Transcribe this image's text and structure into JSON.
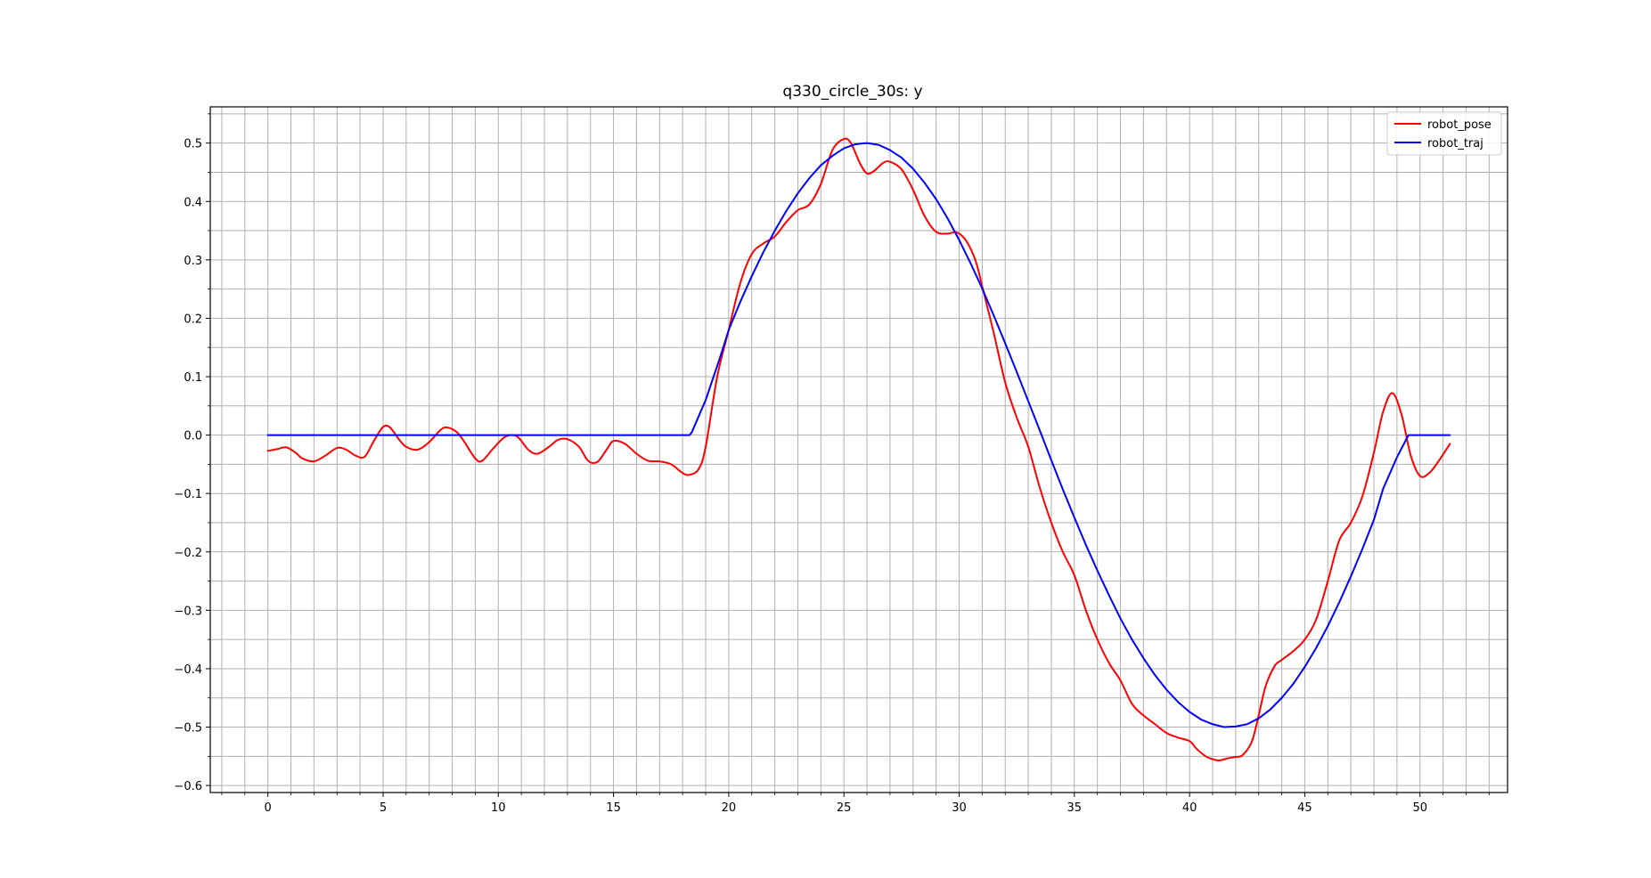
{
  "chart_data": {
    "type": "line",
    "title": "q330_circle_30s: y",
    "xlabel": "",
    "ylabel": "",
    "xlim": [
      -2.5,
      53.8
    ],
    "ylim": [
      -0.612,
      0.562
    ],
    "xticks": [
      0,
      5,
      10,
      15,
      20,
      25,
      30,
      35,
      40,
      45,
      50
    ],
    "xtick_labels": [
      "0",
      "5",
      "10",
      "15",
      "20",
      "25",
      "30",
      "35",
      "40",
      "45",
      "50"
    ],
    "yticks": [
      0.5,
      0.4,
      0.3,
      0.2,
      0.1,
      0.0,
      -0.1,
      -0.2,
      -0.3,
      -0.4,
      -0.5,
      -0.6
    ],
    "ytick_labels": [
      "0.5",
      "0.4",
      "0.3",
      "0.2",
      "0.1",
      "0.0",
      "−0.1",
      "−0.2",
      "−0.3",
      "−0.4",
      "−0.5",
      "−0.6"
    ],
    "grid": true,
    "minor_grid": true,
    "legend_position": "top-right",
    "series": [
      {
        "name": "robot_pose",
        "color": "#ff0000",
        "x": [
          0,
          0.4,
          0.8,
          1.2,
          1.5,
          2.0,
          2.5,
          3.0,
          3.4,
          3.8,
          4.2,
          4.6,
          5.0,
          5.3,
          5.7,
          6.0,
          6.5,
          7.0,
          7.5,
          7.8,
          8.2,
          8.5,
          9.0,
          9.3,
          9.8,
          10.3,
          10.8,
          11.3,
          11.7,
          12.2,
          12.6,
          13.0,
          13.5,
          13.9,
          14.3,
          14.7,
          15.0,
          15.5,
          16.0,
          16.5,
          17.0,
          17.5,
          18.0,
          18.3,
          18.7,
          19.0,
          19.5,
          20.0,
          20.5,
          21.0,
          21.5,
          22.0,
          22.5,
          23.0,
          23.5,
          24.0,
          24.5,
          25.0,
          25.3,
          25.7,
          26.0,
          26.3,
          26.7,
          27.0,
          27.5,
          28.0,
          28.5,
          29.0,
          29.5,
          29.9,
          30.3,
          30.7,
          31.0,
          31.5,
          32.0,
          32.5,
          33.0,
          33.5,
          34.0,
          34.5,
          35.0,
          35.5,
          36.0,
          36.5,
          37.0,
          37.5,
          38.0,
          38.5,
          39.0,
          39.5,
          40.0,
          40.3,
          40.7,
          41.0,
          41.3,
          41.7,
          42.0,
          42.3,
          42.7,
          43.0,
          43.3,
          43.7,
          44.0,
          44.5,
          45.0,
          45.5,
          46.0,
          46.5,
          47.0,
          47.5,
          48.0,
          48.4,
          48.8,
          49.2,
          49.6,
          50.0,
          50.4,
          50.8,
          51.3
        ],
        "y": [
          -0.027,
          -0.024,
          -0.021,
          -0.03,
          -0.04,
          -0.045,
          -0.035,
          -0.022,
          -0.025,
          -0.035,
          -0.037,
          -0.01,
          0.014,
          0.013,
          -0.008,
          -0.02,
          -0.025,
          -0.012,
          0.009,
          0.013,
          0.005,
          -0.01,
          -0.04,
          -0.044,
          -0.022,
          -0.003,
          -0.002,
          -0.025,
          -0.032,
          -0.02,
          -0.008,
          -0.007,
          -0.02,
          -0.044,
          -0.046,
          -0.025,
          -0.01,
          -0.015,
          -0.032,
          -0.044,
          -0.045,
          -0.05,
          -0.065,
          -0.068,
          -0.058,
          -0.02,
          0.1,
          0.18,
          0.26,
          0.31,
          0.328,
          0.34,
          0.365,
          0.385,
          0.395,
          0.43,
          0.488,
          0.507,
          0.5,
          0.465,
          0.448,
          0.452,
          0.466,
          0.468,
          0.455,
          0.42,
          0.375,
          0.348,
          0.345,
          0.347,
          0.333,
          0.3,
          0.255,
          0.175,
          0.09,
          0.03,
          -0.02,
          -0.09,
          -0.15,
          -0.2,
          -0.24,
          -0.3,
          -0.35,
          -0.39,
          -0.42,
          -0.46,
          -0.48,
          -0.495,
          -0.51,
          -0.518,
          -0.524,
          -0.537,
          -0.55,
          -0.555,
          -0.557,
          -0.553,
          -0.551,
          -0.548,
          -0.525,
          -0.48,
          -0.43,
          -0.395,
          -0.385,
          -0.37,
          -0.35,
          -0.315,
          -0.25,
          -0.18,
          -0.15,
          -0.105,
          -0.03,
          0.04,
          0.072,
          0.035,
          -0.035,
          -0.07,
          -0.065,
          -0.045,
          -0.015
        ]
      },
      {
        "name": "robot_traj",
        "color": "#0000ff",
        "x": [
          0,
          18.3,
          18.4,
          19.0,
          19.6,
          20.0,
          20.5,
          21.0,
          21.5,
          22.0,
          22.5,
          23.0,
          23.5,
          24.0,
          24.5,
          25.0,
          25.5,
          26.0,
          26.5,
          27.0,
          27.5,
          28.0,
          28.5,
          29.0,
          29.5,
          30.0,
          30.5,
          31.0,
          31.5,
          32.0,
          32.5,
          33.0,
          33.5,
          34.0,
          34.5,
          35.0,
          35.5,
          36.0,
          36.5,
          37.0,
          37.5,
          38.0,
          38.5,
          39.0,
          39.5,
          40.0,
          40.5,
          41.0,
          41.5,
          42.0,
          42.5,
          43.0,
          43.5,
          44.0,
          44.5,
          45.0,
          45.5,
          46.0,
          46.5,
          47.0,
          47.5,
          48.0,
          48.4,
          49.0,
          49.5,
          50.0,
          50.5,
          51.0,
          51.3
        ],
        "y": [
          0,
          0,
          0.005,
          0.06,
          0.13,
          0.18,
          0.228,
          0.272,
          0.313,
          0.35,
          0.384,
          0.414,
          0.44,
          0.462,
          0.478,
          0.491,
          0.498,
          0.5,
          0.497,
          0.488,
          0.475,
          0.456,
          0.432,
          0.404,
          0.371,
          0.334,
          0.294,
          0.251,
          0.205,
          0.157,
          0.108,
          0.058,
          0.008,
          -0.043,
          -0.093,
          -0.141,
          -0.188,
          -0.232,
          -0.274,
          -0.314,
          -0.35,
          -0.382,
          -0.411,
          -0.436,
          -0.457,
          -0.474,
          -0.487,
          -0.495,
          -0.5,
          -0.499,
          -0.495,
          -0.485,
          -0.47,
          -0.45,
          -0.426,
          -0.397,
          -0.364,
          -0.327,
          -0.286,
          -0.242,
          -0.195,
          -0.145,
          -0.092,
          -0.038,
          0.0,
          0.0,
          0.0,
          0.0,
          0.0
        ]
      }
    ]
  }
}
